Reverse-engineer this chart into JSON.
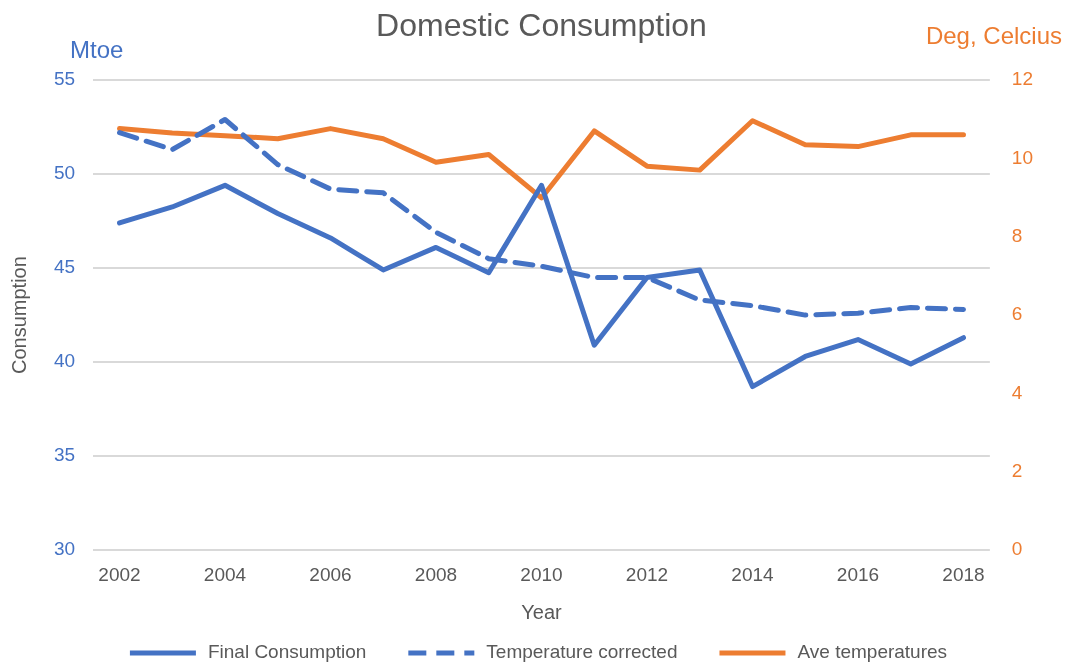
{
  "chart_data": {
    "type": "line",
    "title": "Domestic Consumption",
    "xlabel": "Year",
    "ylabel": "Consumption",
    "y2label": "Deg, Celcius",
    "annotations": [
      "Mtoe"
    ],
    "x": [
      2002,
      2003,
      2004,
      2005,
      2006,
      2007,
      2008,
      2009,
      2010,
      2011,
      2012,
      2013,
      2014,
      2015,
      2016,
      2017,
      2018
    ],
    "xlim": [
      2001.5,
      2018.5
    ],
    "xticks": [
      2002,
      2004,
      2006,
      2008,
      2010,
      2012,
      2014,
      2016,
      2018
    ],
    "ylim": [
      30,
      55
    ],
    "yticks": [
      30,
      35,
      40,
      45,
      50,
      55
    ],
    "y2lim": [
      0,
      12
    ],
    "y2ticks": [
      0,
      2,
      4,
      6,
      8,
      10,
      12
    ],
    "grid": "y",
    "legend": "bottom",
    "marker": "none",
    "series": [
      {
        "name": "Final Consumption",
        "color": "#4472c4",
        "line_style": "solid",
        "values": [
          47.4,
          48.25,
          49.4,
          47.9,
          46.6,
          44.9,
          46.1,
          44.75,
          49.4,
          40.9,
          44.5,
          44.9,
          38.7,
          40.3,
          41.2,
          39.9,
          41.3
        ]
      },
      {
        "name": "Temperature corrected",
        "color": "#4472c4",
        "line_style": "dashed",
        "values": [
          52.2,
          51.3,
          52.9,
          50.5,
          49.2,
          49.0,
          46.9,
          45.5,
          45.1,
          44.5,
          44.5,
          43.3,
          43.0,
          42.5,
          42.6,
          42.9,
          42.8
        ]
      },
      {
        "name": "Ave temperatures",
        "color": "#ed7d31",
        "line_style": "solid",
        "axis": "y2",
        "values": [
          10.76,
          10.65,
          10.58,
          10.5,
          10.76,
          10.5,
          9.9,
          10.1,
          8.99,
          10.7,
          9.8,
          9.7,
          10.96,
          10.35,
          10.3,
          10.6,
          10.6
        ]
      }
    ]
  }
}
